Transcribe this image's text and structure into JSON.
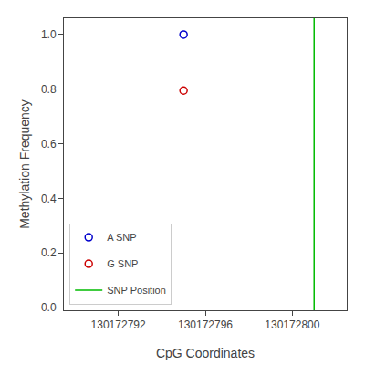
{
  "chart_data": {
    "type": "scatter",
    "xlabel": "CpG Coordinates",
    "ylabel": "Methylation Frequency",
    "series": [
      {
        "name": "A SNP",
        "type": "scatter",
        "marker": "open circle",
        "color": "#0000cc",
        "x": [
          130172795
        ],
        "values": [
          1.0
        ]
      },
      {
        "name": "G SNP",
        "type": "scatter",
        "marker": "open circle",
        "color": "#cc0000",
        "x": [
          130172795
        ],
        "values": [
          0.795
        ]
      },
      {
        "name": "SNP Position",
        "type": "vline",
        "line_style": "solid",
        "color": "#00bb00",
        "x": [
          130172801
        ]
      }
    ],
    "xlim": [
      130172789.5,
      130172802.5
    ],
    "ylim": [
      -0.01,
      1.06
    ],
    "xticks": [
      130172792,
      130172796,
      130172800
    ],
    "yticks": [
      {
        "value": 0.0,
        "label": "0.0"
      },
      0.2,
      0.4,
      0.6,
      0.8,
      {
        "value": 1.0,
        "label": "1.0"
      }
    ],
    "grid": false,
    "legend": "lower left"
  }
}
